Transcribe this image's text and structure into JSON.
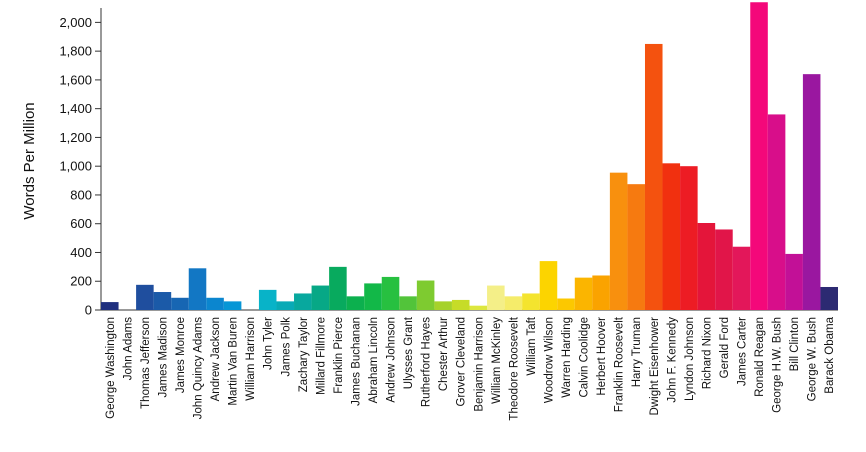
{
  "chart_data": {
    "type": "bar",
    "title": "",
    "xlabel": "",
    "ylabel": "Words Per Million",
    "ylim": [
      0,
      2100
    ],
    "yticks": [
      0,
      200,
      400,
      600,
      800,
      1000,
      1200,
      1400,
      1600,
      1800,
      2000
    ],
    "ytick_labels": [
      "0",
      "200",
      "400",
      "600",
      "800",
      "1,000",
      "1,200",
      "1,400",
      "1,600",
      "1,800",
      "2,000"
    ],
    "grid": false,
    "legend": "none",
    "categories": [
      "George Washington",
      "John Adams",
      "Thomas Jefferson",
      "James Madison",
      "James Monroe",
      "John Quincy Adams",
      "Andrew Jackson",
      "Martin Van Buren",
      "William Harrison",
      "John Tyler",
      "James Polk",
      "Zachary Taylor",
      "Millard Fillmore",
      "Franklin Pierce",
      "James Buchanan",
      "Abraham Lincoln",
      "Andrew Johnson",
      "Ulysses Grant",
      "Rutherford Hayes",
      "Chester Arthur",
      "Grover Cleveland",
      "Benjamin Harrison",
      "William McKinley",
      "Theodore Roosevelt",
      "William Taft",
      "Woodrow Wilson",
      "Warren Harding",
      "Calvin Coolidge",
      "Herbert Hoover",
      "Franklin Roosevelt",
      "Harry Truman",
      "Dwight Eisenhower",
      "John F. Kennedy",
      "Lyndon Johnson",
      "Richard Nixon",
      "Gerald Ford",
      "James Carter",
      "Ronald Reagan",
      "George H.W. Bush",
      "Bill Clinton",
      "George W. Bush",
      "Barack Obama"
    ],
    "values": [
      55,
      0,
      175,
      125,
      85,
      290,
      85,
      60,
      0,
      140,
      60,
      115,
      170,
      300,
      95,
      185,
      230,
      95,
      205,
      60,
      70,
      30,
      170,
      95,
      115,
      340,
      80,
      225,
      240,
      955,
      875,
      1850,
      1020,
      1000,
      605,
      560,
      440,
      2140,
      1360,
      390,
      1640,
      160
    ],
    "colors": [
      "#1f2f7e",
      "#223a8e",
      "#1f4e9e",
      "#1b5aa8",
      "#1766b3",
      "#1277c4",
      "#0b86cf",
      "#0696d6",
      "#0aa6d7",
      "#08b3c8",
      "#08aab6",
      "#08a89e",
      "#07a886",
      "#08aa5e",
      "#0cb04e",
      "#12b848",
      "#27c040",
      "#52c43a",
      "#7ecb30",
      "#a6d22a",
      "#c6dc28",
      "#dde73e",
      "#f4ef88",
      "#f5ec6a",
      "#f4e42e",
      "#fcd400",
      "#fcc800",
      "#fbb500",
      "#faa300",
      "#f8900e",
      "#f67a10",
      "#f4520f",
      "#f1300f",
      "#ed1c24",
      "#e4153a",
      "#e11549",
      "#e3175a",
      "#f4087a",
      "#d80e8a",
      "#c21097",
      "#9a17a0",
      "#2c2a72"
    ]
  }
}
